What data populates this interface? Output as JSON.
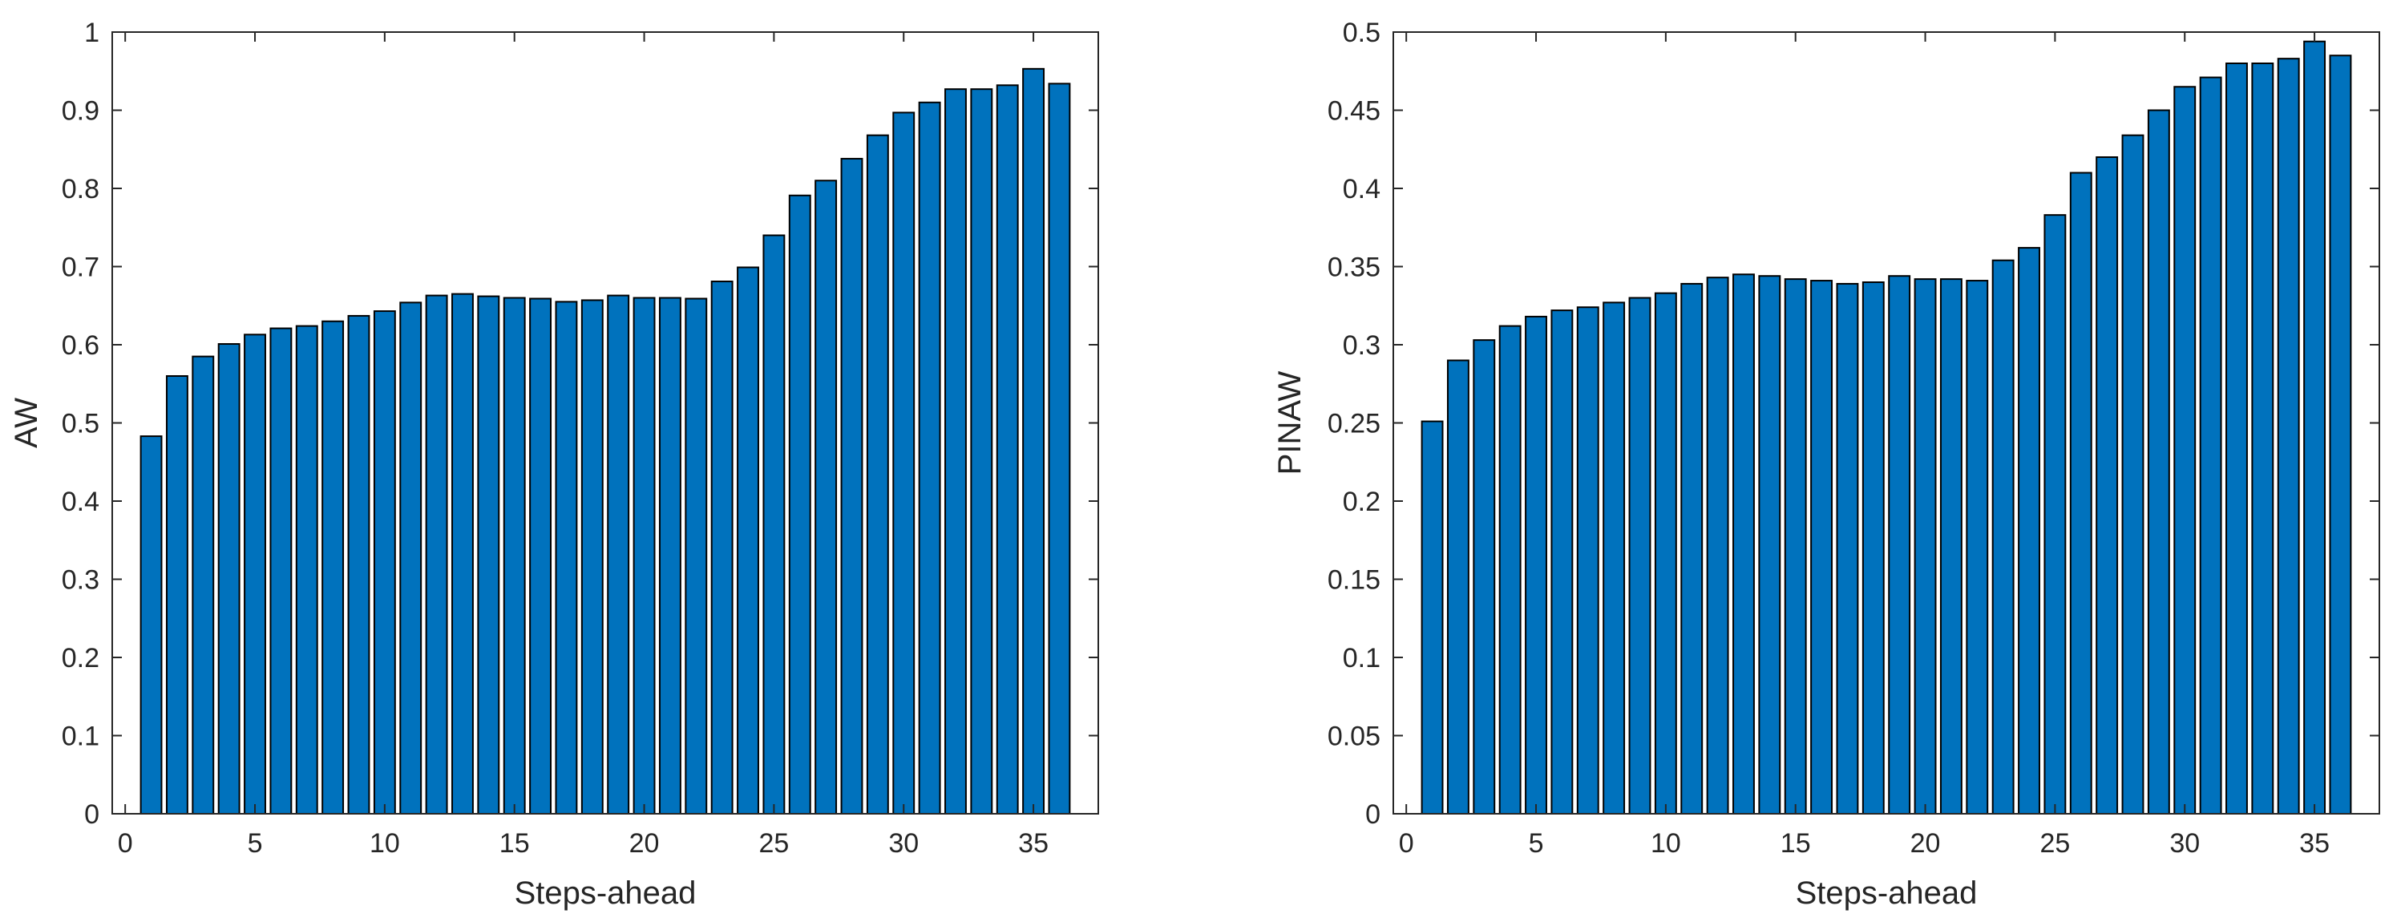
{
  "chart_data": [
    {
      "type": "bar",
      "title": "",
      "xlabel": "Steps-ahead",
      "ylabel": "AW",
      "xlim": [
        -0.5,
        37.5
      ],
      "ylim": [
        0,
        1
      ],
      "xticks": [
        0,
        5,
        10,
        15,
        20,
        25,
        30,
        35
      ],
      "xtick_labels": [
        "0",
        "5",
        "10",
        "15",
        "20",
        "25",
        "30",
        "35"
      ],
      "yticks": [
        0,
        0.1,
        0.2,
        0.3,
        0.4,
        0.5,
        0.6,
        0.7,
        0.8,
        0.9,
        1
      ],
      "ytick_labels": [
        "0",
        "0.1",
        "0.2",
        "0.3",
        "0.4",
        "0.5",
        "0.6",
        "0.7",
        "0.8",
        "0.9",
        "1"
      ],
      "grid": false,
      "bar_color": "#0072BD",
      "categories": [
        1,
        2,
        3,
        4,
        5,
        6,
        7,
        8,
        9,
        10,
        11,
        12,
        13,
        14,
        15,
        16,
        17,
        18,
        19,
        20,
        21,
        22,
        23,
        24,
        25,
        26,
        27,
        28,
        29,
        30,
        31,
        32,
        33,
        34,
        35,
        36
      ],
      "values": [
        0.483,
        0.56,
        0.585,
        0.601,
        0.613,
        0.621,
        0.624,
        0.63,
        0.637,
        0.643,
        0.654,
        0.663,
        0.665,
        0.662,
        0.66,
        0.659,
        0.655,
        0.657,
        0.663,
        0.66,
        0.66,
        0.659,
        0.681,
        0.699,
        0.74,
        0.791,
        0.81,
        0.838,
        0.868,
        0.897,
        0.91,
        0.927,
        0.927,
        0.932,
        0.953,
        0.934
      ]
    },
    {
      "type": "bar",
      "title": "",
      "xlabel": "Steps-ahead",
      "ylabel": "PINAW",
      "xlim": [
        -0.5,
        37.5
      ],
      "ylim": [
        0,
        0.5
      ],
      "xticks": [
        0,
        5,
        10,
        15,
        20,
        25,
        30,
        35
      ],
      "xtick_labels": [
        "0",
        "5",
        "10",
        "15",
        "20",
        "25",
        "30",
        "35"
      ],
      "yticks": [
        0,
        0.05,
        0.1,
        0.15,
        0.2,
        0.25,
        0.3,
        0.35,
        0.4,
        0.45,
        0.5
      ],
      "ytick_labels": [
        "0",
        "0.05",
        "0.1",
        "0.15",
        "0.2",
        "0.25",
        "0.3",
        "0.35",
        "0.4",
        "0.45",
        "0.5"
      ],
      "grid": false,
      "bar_color": "#0072BD",
      "categories": [
        1,
        2,
        3,
        4,
        5,
        6,
        7,
        8,
        9,
        10,
        11,
        12,
        13,
        14,
        15,
        16,
        17,
        18,
        19,
        20,
        21,
        22,
        23,
        24,
        25,
        26,
        27,
        28,
        29,
        30,
        31,
        32,
        33,
        34,
        35,
        36
      ],
      "values": [
        0.251,
        0.29,
        0.303,
        0.312,
        0.318,
        0.322,
        0.324,
        0.327,
        0.33,
        0.333,
        0.339,
        0.343,
        0.345,
        0.344,
        0.342,
        0.341,
        0.339,
        0.34,
        0.344,
        0.342,
        0.342,
        0.341,
        0.354,
        0.362,
        0.383,
        0.41,
        0.42,
        0.434,
        0.45,
        0.465,
        0.471,
        0.48,
        0.48,
        0.483,
        0.494,
        0.485
      ]
    }
  ]
}
